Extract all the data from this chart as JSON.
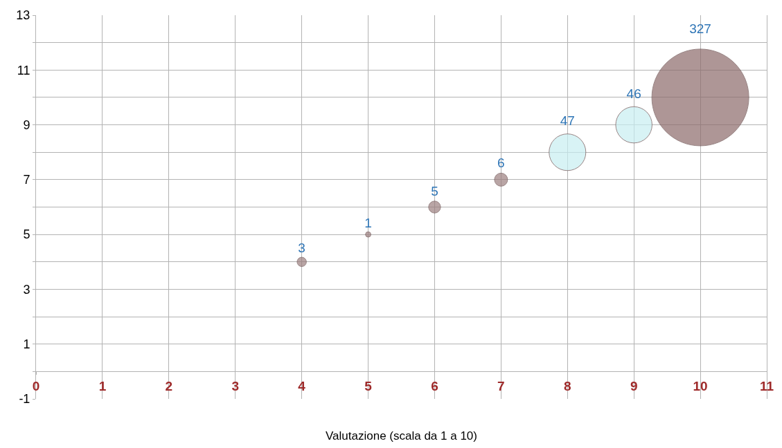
{
  "chart_data": {
    "type": "bubble",
    "xlabel": "Valutazione (scala da 1 a 10)",
    "x": [
      4,
      5,
      6,
      7,
      8,
      9,
      10
    ],
    "values": [
      4,
      5,
      6,
      7,
      8,
      9,
      10
    ],
    "sizes": [
      3,
      1,
      5,
      6,
      47,
      46,
      327
    ],
    "value_labels": [
      "3",
      "1",
      "5",
      "6",
      "47",
      "46",
      "327"
    ],
    "colors": [
      "#9c7f7f",
      "#9c7f7f",
      "#9c7f7f",
      "#9c7f7f",
      "#c8eef2",
      "#c8eef2",
      "#8c6b6b"
    ],
    "marker": "circle",
    "xlim": [
      0,
      11
    ],
    "xticks": [
      0,
      1,
      2,
      3,
      4,
      5,
      6,
      7,
      8,
      9,
      10,
      11
    ],
    "ylim": [
      -1,
      13
    ],
    "yticks": [
      -1,
      {
        "value": 0,
        "label": null
      },
      1,
      {
        "value": 2,
        "label": null
      },
      3,
      {
        "value": 4,
        "label": null
      },
      5,
      {
        "value": 6,
        "label": null
      },
      7,
      {
        "value": 8,
        "label": null
      },
      9,
      {
        "value": 10,
        "label": null
      },
      11,
      {
        "value": 12,
        "label": null
      },
      13
    ],
    "grid": true
  }
}
